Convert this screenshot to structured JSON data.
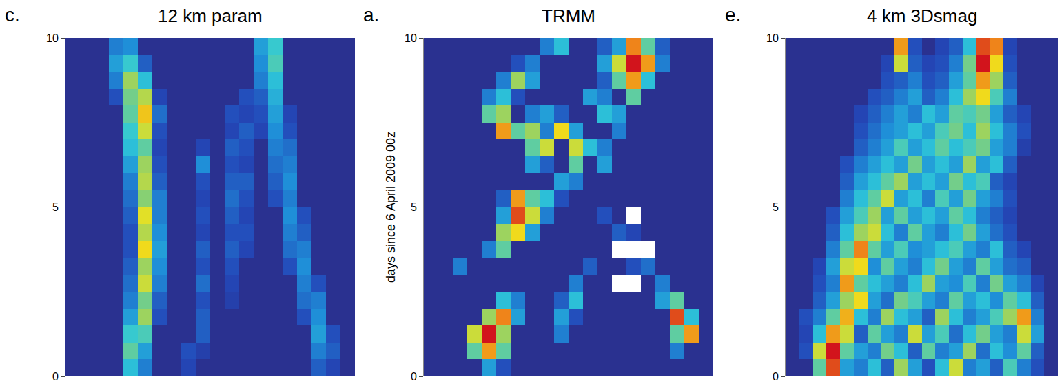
{
  "chart_data": [
    {
      "type": "heatmap",
      "panel": "c.",
      "title": "12 km param",
      "ylim": [
        0,
        10
      ],
      "yticks": [
        0,
        5,
        10
      ],
      "tick_labels": "y",
      "zlim": [
        0,
        3
      ],
      "y": [
        0.25,
        0.75,
        1.25,
        1.75,
        2.25,
        2.75,
        3.25,
        3.75,
        4.25,
        4.75,
        5.25,
        5.75,
        6.25,
        6.75,
        7.25,
        7.75,
        8.25,
        8.75,
        9.25,
        9.75
      ],
      "z": [
        [
          0,
          0,
          0,
          0,
          1.2,
          0.8,
          0,
          0,
          0.4,
          0,
          0,
          0,
          0,
          0,
          0,
          0,
          0,
          0.6,
          0.4,
          0
        ],
        [
          0,
          0,
          0,
          0,
          1.5,
          1.0,
          0,
          0,
          0.5,
          0.3,
          0,
          0,
          0,
          0,
          0,
          0,
          0,
          0.8,
          0.6,
          0
        ],
        [
          0,
          0,
          0,
          0,
          1.3,
          1.4,
          0,
          0,
          0,
          0.6,
          0,
          0,
          0,
          0,
          0,
          0,
          0,
          1.0,
          0.5,
          0
        ],
        [
          0,
          0,
          0,
          0,
          1.0,
          1.8,
          0.5,
          0,
          0,
          0.6,
          0,
          0,
          0,
          0,
          0,
          0,
          0.5,
          0.9,
          0,
          0
        ],
        [
          0,
          0,
          0,
          0,
          0.8,
          1.6,
          0.6,
          0,
          0,
          0.5,
          0,
          0.3,
          0,
          0,
          0,
          0,
          0.7,
          0.8,
          0,
          0
        ],
        [
          0,
          0,
          0,
          0,
          0.7,
          2.0,
          0.8,
          0,
          0,
          0.7,
          0,
          0.4,
          0,
          0,
          0,
          0,
          0.8,
          0.5,
          0,
          0
        ],
        [
          0,
          0,
          0,
          0,
          0.6,
          1.8,
          0.9,
          0,
          0,
          0.5,
          0,
          0.5,
          0,
          0,
          0,
          0.5,
          0.9,
          0,
          0,
          0
        ],
        [
          0,
          0,
          0,
          0,
          0.5,
          2.2,
          1.0,
          0,
          0,
          0.6,
          0,
          0.6,
          0.4,
          0,
          0,
          0.7,
          0.8,
          0,
          0,
          0
        ],
        [
          0,
          0,
          0,
          0,
          0.5,
          1.9,
          0.9,
          0,
          0,
          0.4,
          0,
          0.5,
          0.5,
          0,
          0,
          0.8,
          0.6,
          0,
          0,
          0
        ],
        [
          0,
          0,
          0,
          0,
          0.6,
          2.1,
          0.8,
          0,
          0,
          0.5,
          0,
          0.6,
          0.4,
          0,
          0,
          0.9,
          0.5,
          0,
          0,
          0
        ],
        [
          0,
          0,
          0,
          0,
          0.7,
          1.7,
          0.8,
          0,
          0,
          0.4,
          0,
          0.7,
          0.5,
          0,
          0.5,
          0.8,
          0,
          0,
          0,
          0
        ],
        [
          0,
          0,
          0,
          0,
          0.8,
          1.9,
          0.6,
          0,
          0,
          0.5,
          0,
          0.6,
          0.6,
          0,
          0.6,
          0.9,
          0,
          0,
          0,
          0
        ],
        [
          0,
          0,
          0,
          0,
          1.0,
          1.8,
          0.5,
          0,
          0,
          0.9,
          0,
          0.5,
          0.4,
          0,
          0.7,
          0.8,
          0,
          0,
          0,
          0
        ],
        [
          0,
          0,
          0,
          0,
          1.2,
          1.5,
          0.4,
          0,
          0,
          0.4,
          0,
          0.6,
          0.5,
          0,
          0.8,
          0.7,
          0,
          0,
          0,
          0
        ],
        [
          0,
          0,
          0,
          0,
          1.3,
          2.0,
          0.5,
          0,
          0,
          0,
          0,
          0.4,
          0.6,
          0.4,
          0.9,
          0.5,
          0,
          0,
          0,
          0
        ],
        [
          0,
          0,
          0,
          0,
          1.5,
          2.3,
          0.7,
          0,
          0,
          0,
          0,
          0.5,
          0.4,
          0.5,
          1.0,
          0.4,
          0,
          0,
          0,
          0
        ],
        [
          0,
          0,
          0,
          0.5,
          1.6,
          1.9,
          0.4,
          0,
          0,
          0,
          0,
          0,
          0.5,
          0.6,
          1.1,
          0,
          0,
          0,
          0,
          0
        ],
        [
          0,
          0,
          0,
          0.8,
          1.8,
          1.2,
          0,
          0,
          0,
          0,
          0,
          0,
          0,
          0.8,
          1.2,
          0,
          0,
          0,
          0,
          0
        ],
        [
          0,
          0,
          0,
          1.0,
          1.3,
          0.6,
          0,
          0,
          0,
          0,
          0,
          0,
          0,
          0.9,
          1.4,
          0,
          0,
          0,
          0,
          0
        ],
        [
          0,
          0,
          0,
          0.8,
          0.9,
          0,
          0,
          0,
          0,
          0,
          0,
          0,
          0,
          1.0,
          1.3,
          0,
          0,
          0,
          0,
          0
        ]
      ]
    },
    {
      "type": "heatmap",
      "panel": "a.",
      "title": "TRMM",
      "ylabel": "days since 6 April 2009 00z",
      "ylim": [
        0,
        10
      ],
      "yticks": [
        0,
        5,
        10
      ],
      "tick_labels": "y",
      "zlim": [
        0,
        3
      ],
      "y": [
        0.25,
        0.75,
        1.25,
        1.75,
        2.25,
        2.75,
        3.25,
        3.75,
        4.25,
        4.75,
        5.25,
        5.75,
        6.25,
        6.75,
        7.25,
        7.75,
        8.25,
        8.75,
        9.25,
        9.75
      ],
      "z": [
        [
          0,
          0,
          0,
          0,
          1.0,
          0.5,
          0,
          0,
          0,
          0,
          0,
          0,
          0,
          0,
          0,
          0,
          0,
          0,
          0,
          0
        ],
        [
          0,
          0,
          0,
          1.5,
          2.5,
          1.5,
          0,
          0,
          0,
          0,
          0,
          0,
          0,
          0,
          0,
          0,
          0,
          0.8,
          0,
          0
        ],
        [
          0,
          0,
          0,
          2.0,
          3.0,
          1.8,
          0,
          0,
          0,
          0.8,
          0,
          0,
          0,
          0,
          0,
          0,
          0,
          1.5,
          2.5,
          0
        ],
        [
          0,
          0,
          0,
          0,
          1.8,
          2.6,
          1.0,
          0,
          0,
          1.0,
          0.5,
          0,
          0,
          0,
          0,
          0,
          0,
          2.8,
          1.2,
          0
        ],
        [
          0,
          0,
          0,
          0,
          0,
          1.2,
          0.8,
          0,
          0,
          0.6,
          1.2,
          0,
          0,
          0,
          0,
          0,
          1.0,
          1.5,
          0,
          0
        ],
        [
          0,
          0,
          0,
          0,
          0,
          0,
          0,
          0,
          0,
          0,
          0.8,
          0,
          0,
          null,
          null,
          0,
          0.8,
          0,
          0,
          0
        ],
        [
          0,
          0,
          0.8,
          0,
          0,
          0,
          0,
          0,
          0,
          0,
          0,
          0.6,
          0,
          0,
          0.5,
          0.7,
          0,
          0,
          0,
          0
        ],
        [
          0,
          0,
          0,
          0,
          0.8,
          1.5,
          0,
          0,
          0,
          0,
          0,
          0,
          0,
          null,
          null,
          null,
          0,
          0,
          0,
          0
        ],
        [
          0,
          0,
          0,
          0,
          0,
          1.8,
          2.2,
          1.0,
          0,
          0,
          0,
          0,
          0,
          0.6,
          0.4,
          0,
          0,
          0,
          0,
          0
        ],
        [
          0,
          0,
          0,
          0,
          0,
          1.0,
          2.8,
          2.0,
          0.8,
          0,
          0,
          0,
          0.5,
          0,
          null,
          0,
          0,
          0,
          0,
          0
        ],
        [
          0,
          0,
          0,
          0,
          0,
          0.6,
          2.5,
          1.5,
          1.2,
          0.5,
          0,
          0,
          0,
          0,
          0,
          0,
          0,
          0,
          0,
          0
        ],
        [
          0,
          0,
          0,
          0,
          0,
          0,
          0,
          0,
          0,
          1.0,
          0.8,
          0,
          0,
          0,
          0,
          0,
          0,
          0,
          0,
          0
        ],
        [
          0,
          0,
          0,
          0,
          0,
          0,
          0,
          1.0,
          0.6,
          0,
          1.5,
          0,
          1.0,
          0,
          0,
          0,
          0,
          0,
          0,
          0
        ],
        [
          0,
          0,
          0,
          0,
          0,
          0,
          0,
          1.5,
          2.0,
          0,
          2.0,
          1.2,
          0.8,
          0,
          0,
          0,
          0,
          0,
          0,
          0
        ],
        [
          0,
          0,
          0,
          0,
          0,
          2.5,
          1.5,
          1.8,
          0.8,
          2.2,
          1.0,
          0,
          0,
          0.8,
          0,
          0,
          0,
          0,
          0,
          0
        ],
        [
          0,
          0,
          0,
          0,
          1.5,
          1.8,
          0,
          0.8,
          1.0,
          0.6,
          0,
          0,
          1.2,
          1.0,
          0,
          0,
          0,
          0,
          0,
          0
        ],
        [
          0,
          0,
          0,
          0,
          0.8,
          1.2,
          0.5,
          0,
          0,
          0,
          0,
          1.0,
          0.8,
          0,
          1.5,
          0,
          0,
          0,
          0,
          0
        ],
        [
          0,
          0,
          0,
          0,
          0,
          0.8,
          1.8,
          1.0,
          0,
          0,
          0,
          0,
          0.6,
          1.5,
          2.5,
          1.2,
          0,
          0,
          0,
          0
        ],
        [
          0,
          0,
          0,
          0,
          0,
          0,
          0.5,
          0.8,
          0,
          0,
          0,
          0,
          1.0,
          2.0,
          3.0,
          2.5,
          0.8,
          0,
          0,
          0
        ],
        [
          0,
          0,
          0,
          0,
          0,
          0,
          0,
          0,
          0.8,
          1.2,
          0,
          0,
          0.6,
          1.0,
          2.6,
          1.5,
          0.6,
          0,
          0,
          0
        ]
      ]
    },
    {
      "type": "heatmap",
      "panel": "e.",
      "title": "4 km 3Dsmag",
      "ylim": [
        0,
        10
      ],
      "yticks": [
        0,
        5,
        10
      ],
      "tick_labels": "y",
      "zlim": [
        0,
        3
      ],
      "y": [
        0.25,
        0.75,
        1.25,
        1.75,
        2.25,
        2.75,
        3.25,
        3.75,
        4.25,
        4.75,
        5.25,
        5.75,
        6.25,
        6.75,
        7.25,
        7.75,
        8.25,
        8.75,
        9.25,
        9.75
      ],
      "z": [
        [
          0,
          0,
          1.5,
          2.8,
          1.0,
          0.8,
          1.2,
          0.6,
          1.8,
          1.0,
          0.5,
          1.2,
          2.0,
          0.8,
          1.0,
          0.6,
          1.4,
          0.8,
          0.5,
          0
        ],
        [
          0,
          0.5,
          2.0,
          3.0,
          1.5,
          1.0,
          0.8,
          1.6,
          1.2,
          0.6,
          1.5,
          0.8,
          1.0,
          1.8,
          0.7,
          1.2,
          0.9,
          1.5,
          0.6,
          0
        ],
        [
          0,
          0.4,
          1.2,
          2.5,
          2.0,
          0.6,
          1.5,
          1.0,
          0.8,
          2.0,
          1.0,
          1.4,
          0.7,
          1.2,
          1.6,
          1.0,
          0.8,
          2.0,
          1.0,
          0
        ],
        [
          0,
          0.5,
          0.8,
          1.5,
          2.4,
          1.2,
          0.8,
          1.8,
          1.2,
          1.0,
          0.6,
          1.8,
          1.2,
          0.8,
          1.0,
          1.4,
          1.8,
          2.5,
          0.8,
          0
        ],
        [
          0,
          0,
          0.6,
          1.0,
          1.8,
          2.2,
          1.0,
          0.7,
          1.6,
          1.4,
          1.0,
          0.8,
          1.5,
          1.0,
          1.2,
          0.9,
          1.5,
          1.2,
          0.6,
          0
        ],
        [
          0,
          0,
          0.5,
          0.8,
          2.5,
          1.5,
          1.2,
          1.0,
          0.8,
          1.2,
          1.8,
          1.0,
          0.9,
          1.4,
          0.8,
          1.6,
          1.0,
          0.8,
          0.4,
          0
        ],
        [
          0,
          0,
          0.4,
          1.0,
          2.0,
          2.2,
          0.9,
          1.5,
          1.0,
          0.8,
          1.2,
          1.6,
          1.0,
          0.8,
          1.5,
          1.0,
          0.7,
          0.6,
          0,
          0
        ],
        [
          0,
          0,
          0,
          0.8,
          1.5,
          2.6,
          1.5,
          1.0,
          1.4,
          0.9,
          1.0,
          1.2,
          1.4,
          1.0,
          0.8,
          1.2,
          0.6,
          0.4,
          0,
          0
        ],
        [
          0,
          0,
          0,
          0.6,
          1.2,
          1.8,
          2.0,
          1.2,
          0.8,
          1.5,
          1.0,
          0.8,
          1.2,
          1.6,
          1.0,
          0.7,
          0.5,
          0,
          0,
          0
        ],
        [
          0,
          0,
          0,
          0.5,
          1.0,
          1.4,
          1.8,
          1.0,
          1.5,
          1.0,
          1.2,
          1.0,
          1.5,
          1.2,
          0.8,
          0.6,
          0.4,
          0,
          0,
          0
        ],
        [
          0,
          0,
          0,
          0,
          0.8,
          1.2,
          1.5,
          2.0,
          1.0,
          1.2,
          0.8,
          1.4,
          1.0,
          1.6,
          1.0,
          0.8,
          0.5,
          0,
          0,
          0
        ],
        [
          0,
          0,
          0,
          0,
          0.6,
          1.0,
          1.2,
          1.5,
          1.8,
          1.0,
          1.2,
          1.0,
          1.6,
          1.2,
          1.4,
          0.6,
          0.4,
          0,
          0,
          0
        ],
        [
          0,
          0,
          0,
          0,
          0.5,
          0.8,
          1.0,
          1.2,
          1.0,
          1.6,
          1.0,
          1.2,
          1.0,
          1.8,
          1.0,
          1.2,
          0.6,
          0,
          0,
          0
        ],
        [
          0,
          0,
          0,
          0,
          0,
          0.6,
          0.8,
          1.0,
          1.4,
          1.0,
          1.2,
          1.5,
          1.2,
          1.4,
          1.6,
          1.0,
          0.8,
          0.3,
          0,
          0
        ],
        [
          0,
          0,
          0,
          0,
          0,
          0.5,
          0.7,
          0.9,
          1.0,
          1.2,
          1.0,
          1.4,
          1.6,
          1.2,
          1.8,
          1.2,
          0.8,
          0.5,
          0,
          0
        ],
        [
          0,
          0,
          0,
          0,
          0,
          0.4,
          0.6,
          0.8,
          1.0,
          0.8,
          1.2,
          1.0,
          1.5,
          1.4,
          1.6,
          1.0,
          0.6,
          0.4,
          0,
          0
        ],
        [
          0,
          0,
          0,
          0,
          0,
          0,
          0.5,
          0.6,
          0.8,
          1.0,
          0.6,
          0.8,
          1.2,
          1.8,
          2.2,
          1.4,
          0.8,
          0,
          0,
          0
        ],
        [
          0,
          0,
          0,
          0,
          0,
          0,
          0,
          0.5,
          0.6,
          0.8,
          0.5,
          0.6,
          1.0,
          1.5,
          2.5,
          1.8,
          0.6,
          0,
          0,
          0
        ],
        [
          0,
          0,
          0,
          0,
          0,
          0,
          0,
          0.4,
          2.0,
          0.6,
          0.4,
          0.5,
          0.8,
          1.6,
          3.0,
          2.2,
          0.5,
          0,
          0,
          0
        ],
        [
          0,
          0,
          0,
          0,
          0,
          0,
          0,
          0,
          2.5,
          0.5,
          0,
          0.4,
          0.6,
          1.2,
          2.8,
          2.6,
          0.4,
          0,
          0,
          0
        ]
      ]
    }
  ]
}
